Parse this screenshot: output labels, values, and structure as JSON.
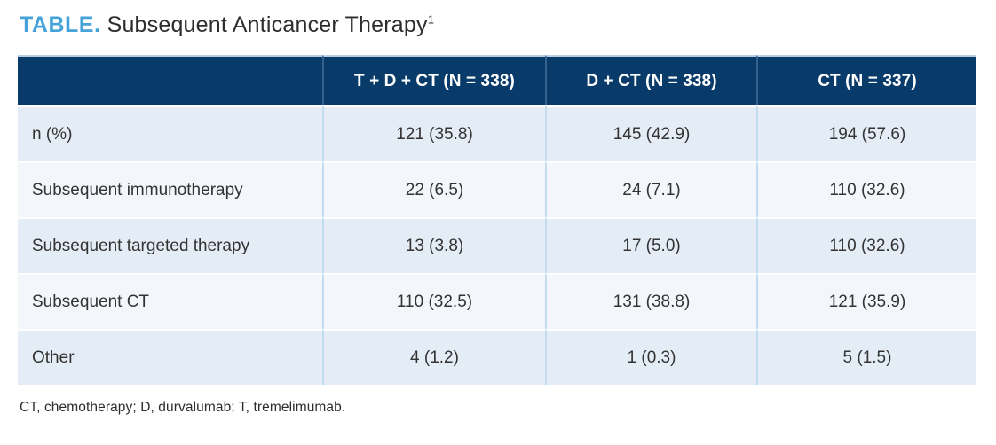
{
  "title": {
    "label": "TABLE.",
    "text": " Subsequent Anticancer Therapy",
    "superscript": "1"
  },
  "table": {
    "columns": [
      "",
      "T + D + CT (N = 338)",
      "D + CT (N = 338)",
      "CT (N = 337)"
    ],
    "rows": [
      {
        "label": "n (%)",
        "values": [
          "121 (35.8)",
          "145 (42.9)",
          "194 (57.6)"
        ]
      },
      {
        "label": "Subsequent immunotherapy",
        "values": [
          "22 (6.5)",
          "24 (7.1)",
          "110 (32.6)"
        ]
      },
      {
        "label": "Subsequent targeted therapy",
        "values": [
          "13 (3.8)",
          "17 (5.0)",
          "110 (32.6)"
        ]
      },
      {
        "label": "Subsequent CT",
        "values": [
          "110 (32.5)",
          "131 (38.8)",
          "121 (35.9)"
        ]
      },
      {
        "label": "Other",
        "values": [
          "4 (1.2)",
          "1 (0.3)",
          "5 (1.5)"
        ]
      }
    ]
  },
  "footnote": "CT, chemotherapy; D, durvalumab; T, tremelimumab.",
  "colors": {
    "accent_title": "#45a3da",
    "header_bg": "#083a6a",
    "header_text": "#ffffff",
    "row_odd_bg": "#e4ecf6",
    "row_even_bg": "#f3f7fb",
    "column_separator_body": "#c3dcef",
    "column_separator_header": "#35618f",
    "body_text": "#333333"
  }
}
